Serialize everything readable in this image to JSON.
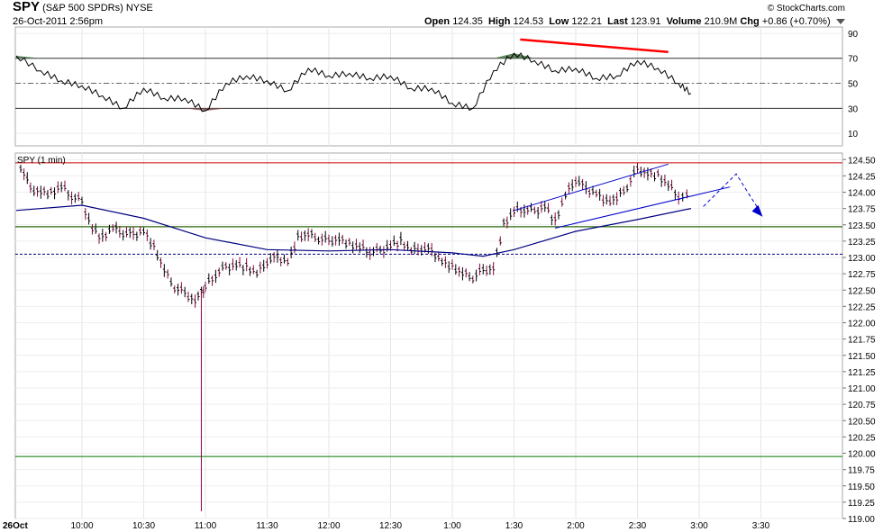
{
  "header": {
    "symbol": "SPY",
    "name": "(S&P 500 SPDRs)",
    "exchange": "NYSE",
    "datetime": "26-Oct-2011 2:56pm",
    "brand": "© StockCharts.com",
    "open_label": "Open",
    "open": "124.35",
    "high_label": "High",
    "high": "124.53",
    "low_label": "Low",
    "low": "122.21",
    "last_label": "Last",
    "last": "123.91",
    "volume_label": "Volume",
    "volume": "210.9M",
    "chg_label": "Chg",
    "chg": "+0.86 (+0.70%)"
  },
  "chart_data": [
    {
      "type": "line",
      "panel": "oscillator",
      "yticks": [
        90,
        70,
        50,
        30,
        10
      ],
      "ylim": [
        0,
        95
      ],
      "reference_lines": [
        70,
        50,
        30
      ],
      "overbought_fill_color": "#4e7a4e",
      "oversold_fill_color": "#8b5a5a",
      "series": [
        {
          "color": "#000000",
          "x": [
            "9:30",
            "9:40",
            "9:50",
            "10:00",
            "10:10",
            "10:20",
            "10:30",
            "10:40",
            "10:50",
            "11:00",
            "11:10",
            "11:20",
            "11:30",
            "11:40",
            "11:50",
            "12:00",
            "12:10",
            "12:20",
            "12:30",
            "12:40",
            "12:50",
            "1:00",
            "1:10",
            "1:20",
            "1:30",
            "1:40",
            "1:50",
            "2:00",
            "2:10",
            "2:20",
            "2:30",
            "2:40",
            "2:50",
            "2:56"
          ],
          "y": [
            72,
            60,
            52,
            48,
            40,
            30,
            46,
            38,
            38,
            28,
            50,
            56,
            52,
            44,
            62,
            56,
            58,
            54,
            56,
            46,
            46,
            34,
            30,
            60,
            74,
            68,
            60,
            62,
            54,
            56,
            68,
            62,
            50,
            42
          ]
        },
        {
          "name": "",
          "color": "#ff0000",
          "x": [
            "1:33",
            "2:45"
          ],
          "y": [
            85,
            75
          ]
        }
      ]
    },
    {
      "type": "line",
      "panel": "price",
      "title": "SPY (1 min)",
      "ylim": [
        119.0,
        124.6
      ],
      "yticks": [
        "124.50",
        "124.25",
        "124.00",
        "123.75",
        "123.50",
        "123.25",
        "123.00",
        "122.75",
        "122.50",
        "122.25",
        "122.00",
        "121.75",
        "121.50",
        "121.25",
        "121.00",
        "120.75",
        "120.50",
        "120.25",
        "120.00",
        "119.75",
        "119.50",
        "119.25",
        "119.00"
      ],
      "xticks": [
        "26Oct",
        "10:00",
        "10:30",
        "11:00",
        "11:30",
        "12:00",
        "12:30",
        "1:00",
        "1:30",
        "2:00",
        "2:30",
        "3:00",
        "3:30"
      ],
      "grid": true,
      "horizontal_lines": [
        {
          "value": 124.45,
          "color": "#cc0000"
        },
        {
          "value": 123.47,
          "color": "#cc0000"
        },
        {
          "value": 123.47,
          "color": "#007700"
        },
        {
          "value": 123.05,
          "color": "#000080",
          "style": "dashed"
        },
        {
          "value": 119.95,
          "color": "#007700"
        }
      ],
      "series": [
        {
          "color": "#000000",
          "x": [
            "9:30",
            "9:35",
            "9:40",
            "9:45",
            "9:50",
            "9:55",
            "10:00",
            "10:05",
            "10:10",
            "10:15",
            "10:20",
            "10:25",
            "10:30",
            "10:35",
            "10:40",
            "10:45",
            "10:50",
            "10:55",
            "10:58",
            "11:00",
            "11:05",
            "11:10",
            "11:15",
            "11:20",
            "11:25",
            "11:30",
            "11:35",
            "11:40",
            "11:45",
            "11:50",
            "11:55",
            "12:00",
            "12:05",
            "12:10",
            "12:15",
            "12:20",
            "12:25",
            "12:30",
            "12:35",
            "12:40",
            "12:45",
            "12:50",
            "12:55",
            "1:00",
            "1:05",
            "1:10",
            "1:15",
            "1:20",
            "1:25",
            "1:30",
            "1:35",
            "1:40",
            "1:45",
            "1:50",
            "1:55",
            "2:00",
            "2:05",
            "2:10",
            "2:15",
            "2:20",
            "2:25",
            "2:30",
            "2:35",
            "2:40",
            "2:45",
            "2:50",
            "2:56"
          ],
          "y": [
            124.4,
            124.05,
            124.02,
            123.98,
            124.08,
            123.95,
            123.85,
            123.45,
            123.3,
            123.45,
            123.38,
            123.35,
            123.42,
            123.15,
            122.8,
            122.55,
            122.45,
            122.35,
            122.45,
            122.55,
            122.75,
            122.85,
            122.9,
            122.85,
            122.75,
            122.95,
            123.0,
            122.95,
            123.3,
            123.35,
            123.3,
            123.25,
            123.3,
            123.2,
            123.15,
            123.1,
            123.1,
            123.2,
            123.25,
            123.1,
            123.15,
            123.1,
            122.95,
            122.85,
            122.75,
            122.7,
            122.8,
            122.85,
            123.5,
            123.7,
            123.75,
            123.7,
            123.8,
            123.55,
            123.95,
            124.2,
            124.05,
            124.0,
            123.85,
            123.9,
            124.1,
            124.35,
            124.3,
            124.25,
            124.1,
            123.95,
            123.91
          ]
        },
        {
          "color": "#000080",
          "x": [
            "9:30",
            "10:00",
            "10:30",
            "11:00",
            "11:30",
            "12:00",
            "12:30",
            "1:00",
            "1:15",
            "1:30",
            "2:00",
            "2:30",
            "2:56"
          ],
          "y": [
            123.72,
            123.8,
            123.6,
            123.3,
            123.12,
            123.1,
            123.12,
            123.07,
            123.02,
            123.12,
            123.4,
            123.58,
            123.75
          ]
        }
      ],
      "annotations": [
        {
          "kind": "line",
          "color": "#0000cc",
          "x": [
            "1:30",
            "2:45"
          ],
          "y": [
            123.72,
            124.43
          ]
        },
        {
          "kind": "line",
          "color": "#0000cc",
          "x": [
            "1:50",
            "3:15"
          ],
          "y": [
            123.45,
            124.08
          ]
        },
        {
          "kind": "dashed-arrow",
          "color": "#0000cc",
          "x": [
            "3:02",
            "3:18",
            "3:30"
          ],
          "y": [
            123.78,
            124.28,
            123.68
          ]
        }
      ],
      "vertical_spike": {
        "x": "10:58",
        "low": 119.0,
        "color": "#8b0045"
      }
    }
  ]
}
